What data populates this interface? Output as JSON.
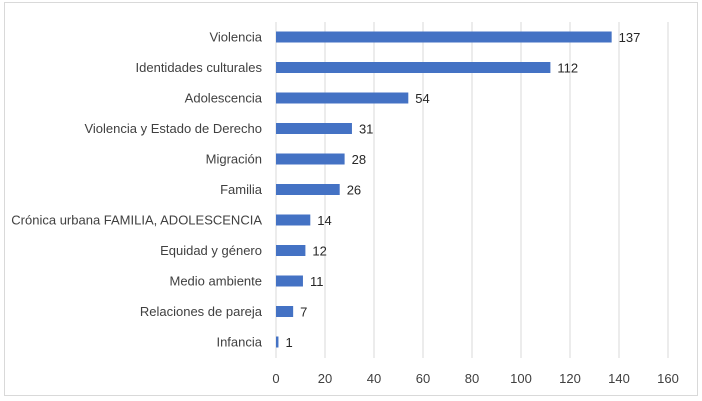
{
  "chart_data": {
    "type": "bar",
    "orientation": "horizontal",
    "title": "",
    "xlabel": "",
    "ylabel": "",
    "categories": [
      "Violencia",
      "Identidades culturales",
      "Adolescencia",
      "Violencia y Estado de Derecho",
      "Migración ",
      "Familia",
      "Crónica urbana FAMILIA, ADOLESCENCIA",
      "Equidad y género",
      "Medio ambiente",
      "Relaciones de pareja",
      "Infancia"
    ],
    "values": [
      137,
      112,
      54,
      31,
      28,
      26,
      14,
      12,
      11,
      7,
      1
    ],
    "data_labels": [
      "137",
      "112",
      "54",
      "31",
      "28",
      "26",
      "14",
      "12",
      "11",
      "7",
      "1"
    ],
    "xlim": [
      0,
      160
    ],
    "x_ticks": [
      0,
      20,
      40,
      60,
      80,
      100,
      120,
      140,
      160
    ],
    "x_tick_labels": [
      "0",
      "20",
      "40",
      "60",
      "80",
      "100",
      "120",
      "140",
      "160"
    ],
    "grid": "vertical",
    "legend": "none",
    "bar_color": "#4472c4",
    "grid_color": "#d9d9d9"
  }
}
